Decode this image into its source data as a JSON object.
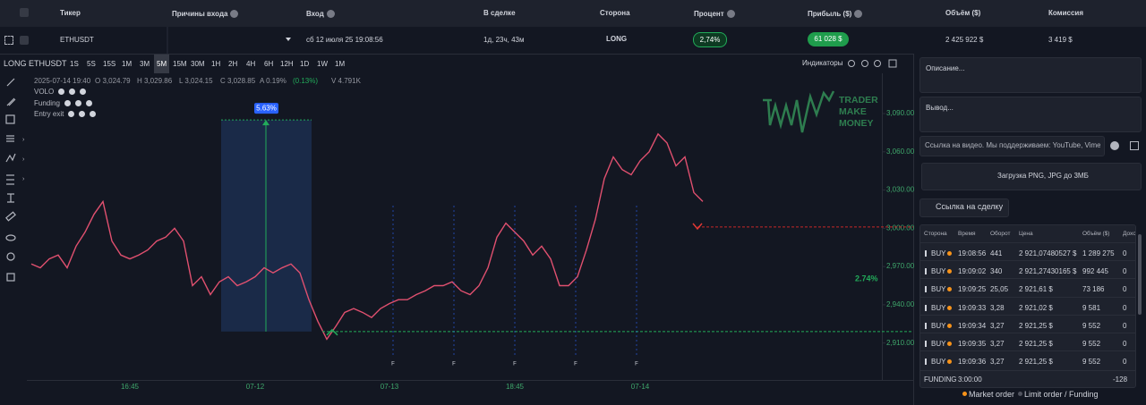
{
  "header": {
    "columns": [
      "Тикер",
      "Причины входа",
      "Вход",
      "В сделке",
      "Сторона",
      "Процент",
      "Прибыль ($)",
      "Объём ($)",
      "Комиссия"
    ]
  },
  "trade": {
    "ticker": "ETHUSDT",
    "entry": "сб 12 июля 25 19:08:56",
    "duration": "1д, 23ч, 43м",
    "side": "LONG",
    "percent": "2,74%",
    "profit": "61 028 $",
    "volume": "2 425 922 $",
    "commission": "3 419 $"
  },
  "toolbar": {
    "symbol": "LONG ETHUSDT",
    "timeframes": [
      "1S",
      "5S",
      "15S",
      "1M",
      "3M",
      "5M",
      "15M",
      "30M",
      "1H",
      "2H",
      "4H",
      "6H",
      "12H",
      "1D",
      "1W",
      "1M"
    ],
    "active": "5M",
    "indicators": "Индикаторы"
  },
  "legend": {
    "ohlc": [
      "2025-07-14 19:40",
      "O 3,024.79",
      "H 3,029.86",
      "L 3,024.15",
      "C 3,028.85",
      "A 0.19%",
      "(0.13%)",
      "V 4.791K"
    ],
    "studies": [
      "VOLO",
      "Funding",
      "Entry exit"
    ]
  },
  "chart_data": {
    "type": "line",
    "categories": [
      null,
      null,
      null,
      null,
      null,
      null,
      null,
      null,
      null,
      null,
      null,
      "16:45",
      null,
      null,
      null,
      null,
      null,
      null,
      null,
      null,
      null,
      null,
      null,
      null,
      null,
      "07-12",
      null,
      null,
      null,
      null,
      null,
      null,
      null,
      null,
      null,
      null,
      null,
      null,
      null,
      null,
      "07-13",
      null,
      null,
      null,
      null,
      null,
      null,
      null,
      null,
      null,
      null,
      null,
      null,
      null,
      "18:45",
      null,
      null,
      null,
      null,
      null,
      null,
      null,
      null,
      null,
      null,
      null,
      null,
      null,
      "07-14",
      null,
      null,
      null,
      null,
      null,
      null,
      null,
      null,
      null,
      null,
      null,
      null,
      null,
      null,
      null,
      null,
      null,
      null,
      null,
      null,
      null,
      null,
      null,
      null,
      null,
      null,
      null
    ],
    "values": [
      2972,
      2969,
      2976,
      2979,
      2969,
      2986,
      2997,
      3011,
      3021,
      2990,
      2979,
      2976,
      2979,
      2983,
      2990,
      2993,
      3000,
      2990,
      2955,
      2962,
      2948,
      2958,
      2962,
      2955,
      2958,
      2962,
      2969,
      2965,
      2969,
      2972,
      2965,
      2944,
      2927,
      2913,
      2923,
      2934,
      2937,
      2934,
      2930,
      2937,
      2941,
      2944,
      2944,
      2948,
      2951,
      2955,
      2955,
      2958,
      2951,
      2948,
      2955,
      2969,
      2993,
      3004,
      2997,
      2990,
      2979,
      2986,
      2976,
      2955,
      2955,
      2962,
      2983,
      3007,
      3039,
      3056,
      3046,
      3042,
      3053,
      3060,
      3074,
      3067,
      3049,
      3056,
      3028,
      3021,
      null,
      null,
      null,
      null,
      null,
      null,
      null,
      null,
      null,
      null,
      null,
      null,
      null,
      null,
      null,
      null,
      null,
      null,
      null,
      null
    ],
    "color": "#e0506f",
    "ylim": [
      2881,
      3123
    ],
    "yticks": [
      {
        "value": 2910,
        "label": "2,910.00"
      },
      {
        "value": 2940,
        "label": "2,940.00"
      },
      {
        "value": 2970,
        "label": "2,970.00"
      },
      {
        "value": 3000,
        "label": "3,000.00"
      },
      {
        "value": 3030,
        "label": "3,030.00"
      },
      {
        "value": 3060,
        "label": "3,060.00"
      },
      {
        "value": 3090,
        "label": "3,090.00"
      }
    ],
    "grid": false,
    "entry_price": 2919,
    "exit_price": 3001,
    "box_top": 3085,
    "box_label": "5.63%",
    "result_label": "2.74%",
    "funding_labels": [
      "F",
      "F",
      "F",
      "F",
      "F"
    ],
    "logo": [
      "TRADER",
      "MAKE",
      "MONEY"
    ]
  },
  "panel": {
    "description": "Описание...",
    "conclusion": "Вывод...",
    "video_placeholder": "Ссылка на видео. Мы поддерживаем: YouTube, Vimeo",
    "upload": "Загрузка PNG, JPG до 3МБ",
    "share": "Ссылка на сделку",
    "table": {
      "columns": [
        "Сторона",
        "Время",
        "Оборот",
        "Цена",
        "Объём ($)",
        "Доход"
      ],
      "rows": [
        [
          "BUY",
          "19:08:56",
          "441",
          "2 921,07480527 $",
          "1 289 275",
          "0"
        ],
        [
          "BUY",
          "19:09:02",
          "340",
          "2 921,27430165 $",
          "992 445",
          "0"
        ],
        [
          "BUY",
          "19:09:25",
          "25,05",
          "2 921,61 $",
          "73 186",
          "0"
        ],
        [
          "BUY",
          "19:09:33",
          "3,28",
          "2 921,02 $",
          "9 581",
          "0"
        ],
        [
          "BUY",
          "19:09:34",
          "3,27",
          "2 921,25 $",
          "9 552",
          "0"
        ],
        [
          "BUY",
          "19:09:35",
          "3,27",
          "2 921,25 $",
          "9 552",
          "0"
        ],
        [
          "BUY",
          "19:09:36",
          "3,27",
          "2 921,25 $",
          "9 552",
          "0"
        ]
      ],
      "funding": [
        "FUNDING",
        "3:00:00",
        "-128"
      ]
    },
    "order_legend": [
      "Market order",
      "Limit order / Funding"
    ]
  }
}
